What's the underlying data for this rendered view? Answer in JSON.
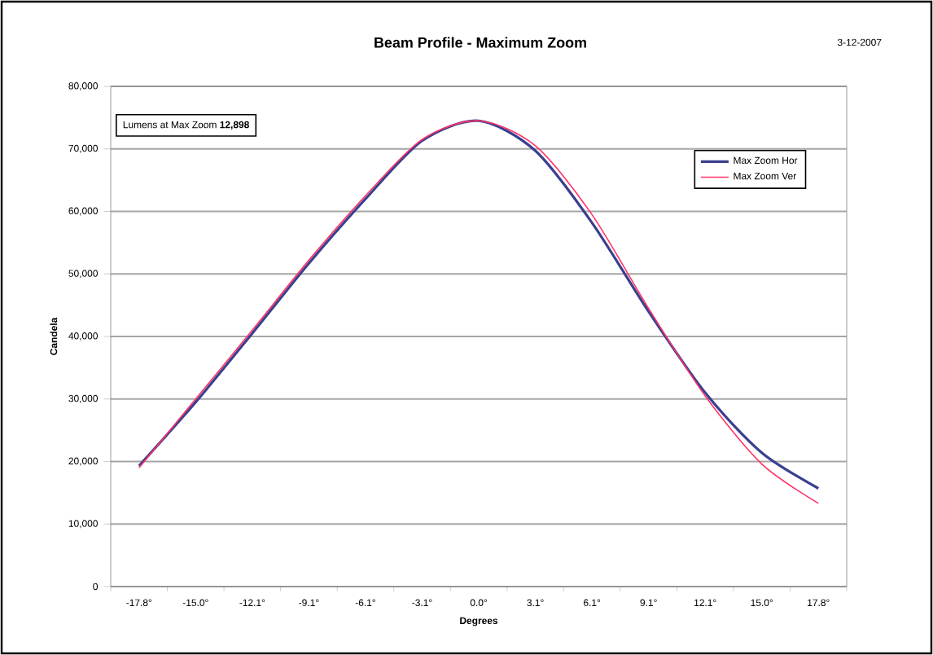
{
  "chart_data": {
    "type": "line",
    "title": "Beam Profile - Maximum Zoom",
    "xlabel": "Degrees",
    "ylabel": "Candela",
    "annotations": [
      "Lumens at Max Zoom **12,898**",
      "3-12-2007"
    ],
    "categories": [
      "-17.8°",
      "-15.0°",
      "-12.1°",
      "-9.1°",
      "-6.1°",
      "-3.1°",
      "0.0°",
      "3.1°",
      "6.1°",
      "9.1°",
      "12.1°",
      "15.0°",
      "17.8°"
    ],
    "series": [
      {
        "name": "Max Zoom Hor",
        "color": "#3b3f8f",
        "values": [
          19300,
          29500,
          40500,
          51700,
          62000,
          71300,
          74500,
          69700,
          58200,
          44000,
          31000,
          21400,
          15700
        ]
      },
      {
        "name": "Max Zoom Ver",
        "color": "#ff3366",
        "values": [
          19000,
          30000,
          41000,
          52200,
          62500,
          71500,
          74500,
          70500,
          59500,
          44500,
          30500,
          19600,
          13300
        ]
      }
    ],
    "ylim": [
      0,
      80000
    ],
    "yticks": [
      0,
      {
        "value": 10000,
        "label": "10,000"
      },
      {
        "value": 20000,
        "label": "20,000"
      },
      {
        "value": 30000,
        "label": "30,000"
      },
      {
        "value": 40000,
        "label": "40,000"
      },
      {
        "value": 50000,
        "label": "50,000"
      },
      {
        "value": 60000,
        "label": "60,000"
      },
      {
        "value": 70000,
        "label": "70,000"
      },
      {
        "value": 80000,
        "label": "80,000"
      }
    ],
    "grid": "y",
    "legend": "top right"
  }
}
